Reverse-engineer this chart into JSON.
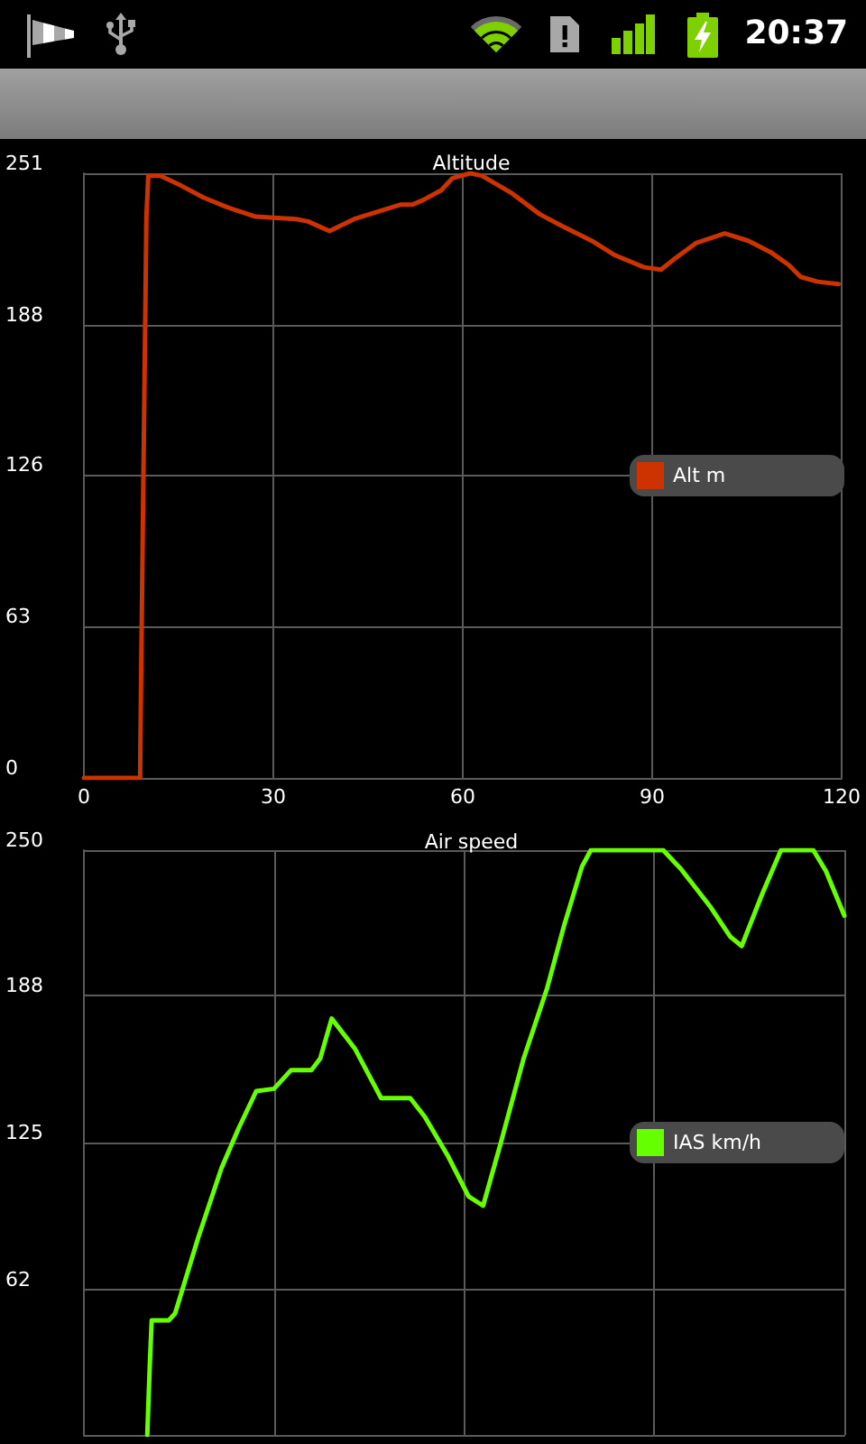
{
  "chart_data": [
    {
      "type": "line",
      "title": "Altitude",
      "series": [
        {
          "name": "Alt m",
          "color": "#cc3300",
          "x": [
            0,
            8.9,
            9.0,
            9.3,
            9.6,
            9.9,
            10.2,
            12.1,
            15.3,
            18.9,
            22.6,
            27.2,
            33.6,
            35.5,
            38.9,
            42.8,
            46.5,
            50.2,
            52.0,
            53.8,
            56.6,
            58.4,
            61.2,
            63.0,
            67.6,
            72.2,
            75.8,
            80.4,
            84.1,
            88.7,
            91.4,
            93.3,
            96.9,
            101.5,
            105.2,
            108.9,
            111.6,
            113.5,
            116.2,
            119.5
          ],
          "values": [
            0,
            0,
            27,
            96,
            165,
            233,
            250,
            250,
            246,
            241,
            237,
            233,
            232,
            231,
            227,
            232,
            235,
            238,
            238,
            240,
            244,
            249,
            251,
            250,
            243,
            234,
            229,
            223,
            217,
            212,
            211,
            215,
            222,
            226,
            223,
            218,
            213,
            208,
            206,
            205
          ]
        }
      ],
      "xlim": [
        0,
        120
      ],
      "xticks": [
        0,
        30,
        60,
        90,
        120
      ],
      "ylim": [
        0,
        251
      ],
      "yticks": [
        0,
        63,
        126,
        188,
        251
      ],
      "grid": true,
      "legend": "right",
      "marker": "none",
      "line_style": "solid",
      "annotations": [
        "20:37"
      ]
    },
    {
      "type": "line",
      "title": "Air speed",
      "series": [
        {
          "name": "IAS km/h",
          "color": "#66ff00",
          "x": [
            10.0,
            10.4,
            10.7,
            13.4,
            14.4,
            18.0,
            21.7,
            24.4,
            27.2,
            30.0,
            32.7,
            35.9,
            37.3,
            39.1,
            42.8,
            46.9,
            51.5,
            53.8,
            57.5,
            60.7,
            63.0,
            65.7,
            69.4,
            73.1,
            75.8,
            78.6,
            80.0,
            91.4,
            94.2,
            98.8,
            102.0,
            103.8,
            107.0,
            110.0,
            115.1,
            117.1,
            120.0
          ],
          "values": [
            0,
            30,
            49,
            49,
            52,
            84,
            114,
            131,
            147,
            148,
            156,
            156,
            161,
            178,
            165,
            144,
            144,
            136,
            119,
            102,
            98,
            124,
            161,
            191,
            218,
            243,
            250,
            250,
            242,
            226,
            213,
            209,
            231,
            250,
            250,
            241,
            222
          ]
        }
      ],
      "xlim": [
        0,
        120
      ],
      "xticks": [
        0,
        30,
        60,
        90,
        120
      ],
      "ylim": [
        0,
        250
      ],
      "yticks": [
        62,
        125,
        188,
        250
      ],
      "grid": true,
      "legend": "right",
      "marker": "none",
      "line_style": "solid",
      "tick_labels": "y"
    }
  ]
}
